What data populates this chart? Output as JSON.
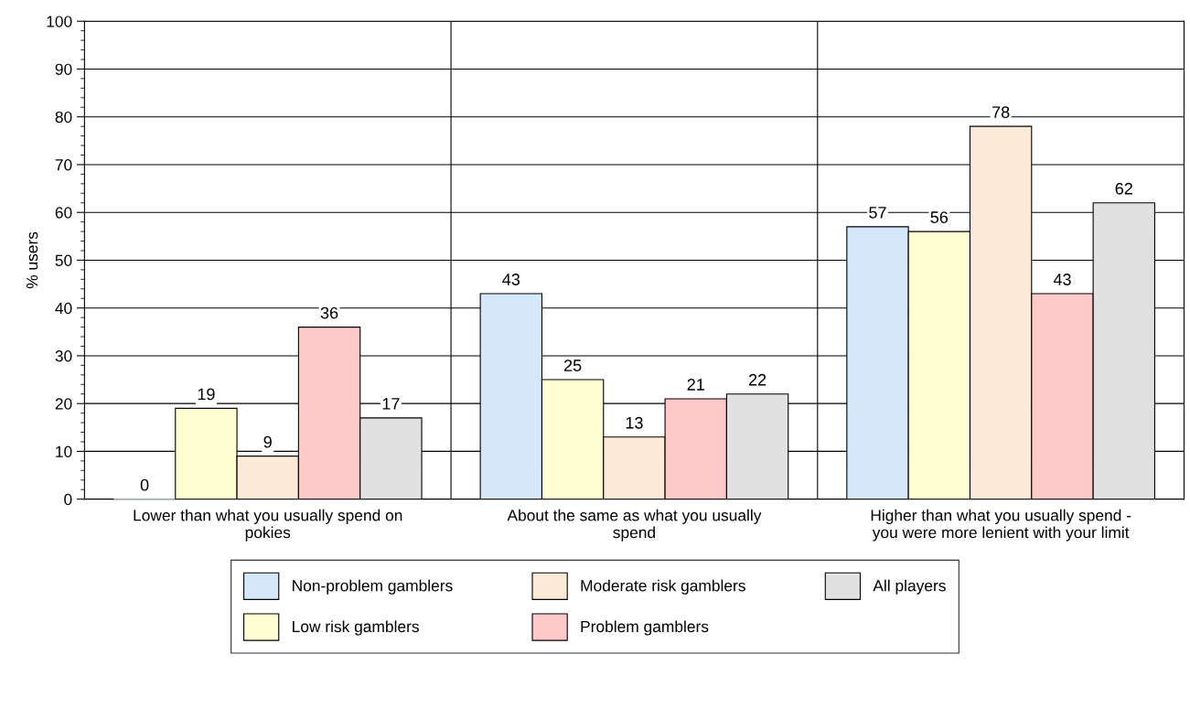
{
  "chart_data": {
    "type": "bar",
    "ylabel": "% users",
    "categories": [
      "Lower than what you usually spend on\npokies",
      "About the same as what you usually\nspend",
      "Higher than what you usually spend -\nyou were more lenient with your limit"
    ],
    "series": [
      {
        "name": "Non-problem gamblers",
        "color": "#d5e8fa",
        "values": [
          0,
          43,
          57
        ]
      },
      {
        "name": "Low risk gamblers",
        "color": "#ffffd2",
        "values": [
          19,
          25,
          56
        ]
      },
      {
        "name": "Moderate risk gamblers",
        "color": "#fde9d7",
        "values": [
          9,
          13,
          78
        ]
      },
      {
        "name": "Problem gamblers",
        "color": "#fdc9c9",
        "values": [
          36,
          21,
          43
        ]
      },
      {
        "name": "All players",
        "color": "#e1e1e1",
        "values": [
          17,
          22,
          62
        ]
      }
    ],
    "ylim": [
      0,
      100
    ],
    "yticks": [
      0,
      10,
      20,
      30,
      40,
      50,
      60,
      70,
      80,
      90,
      100
    ],
    "grid": true,
    "legend": "bottom",
    "data_labels": true
  }
}
